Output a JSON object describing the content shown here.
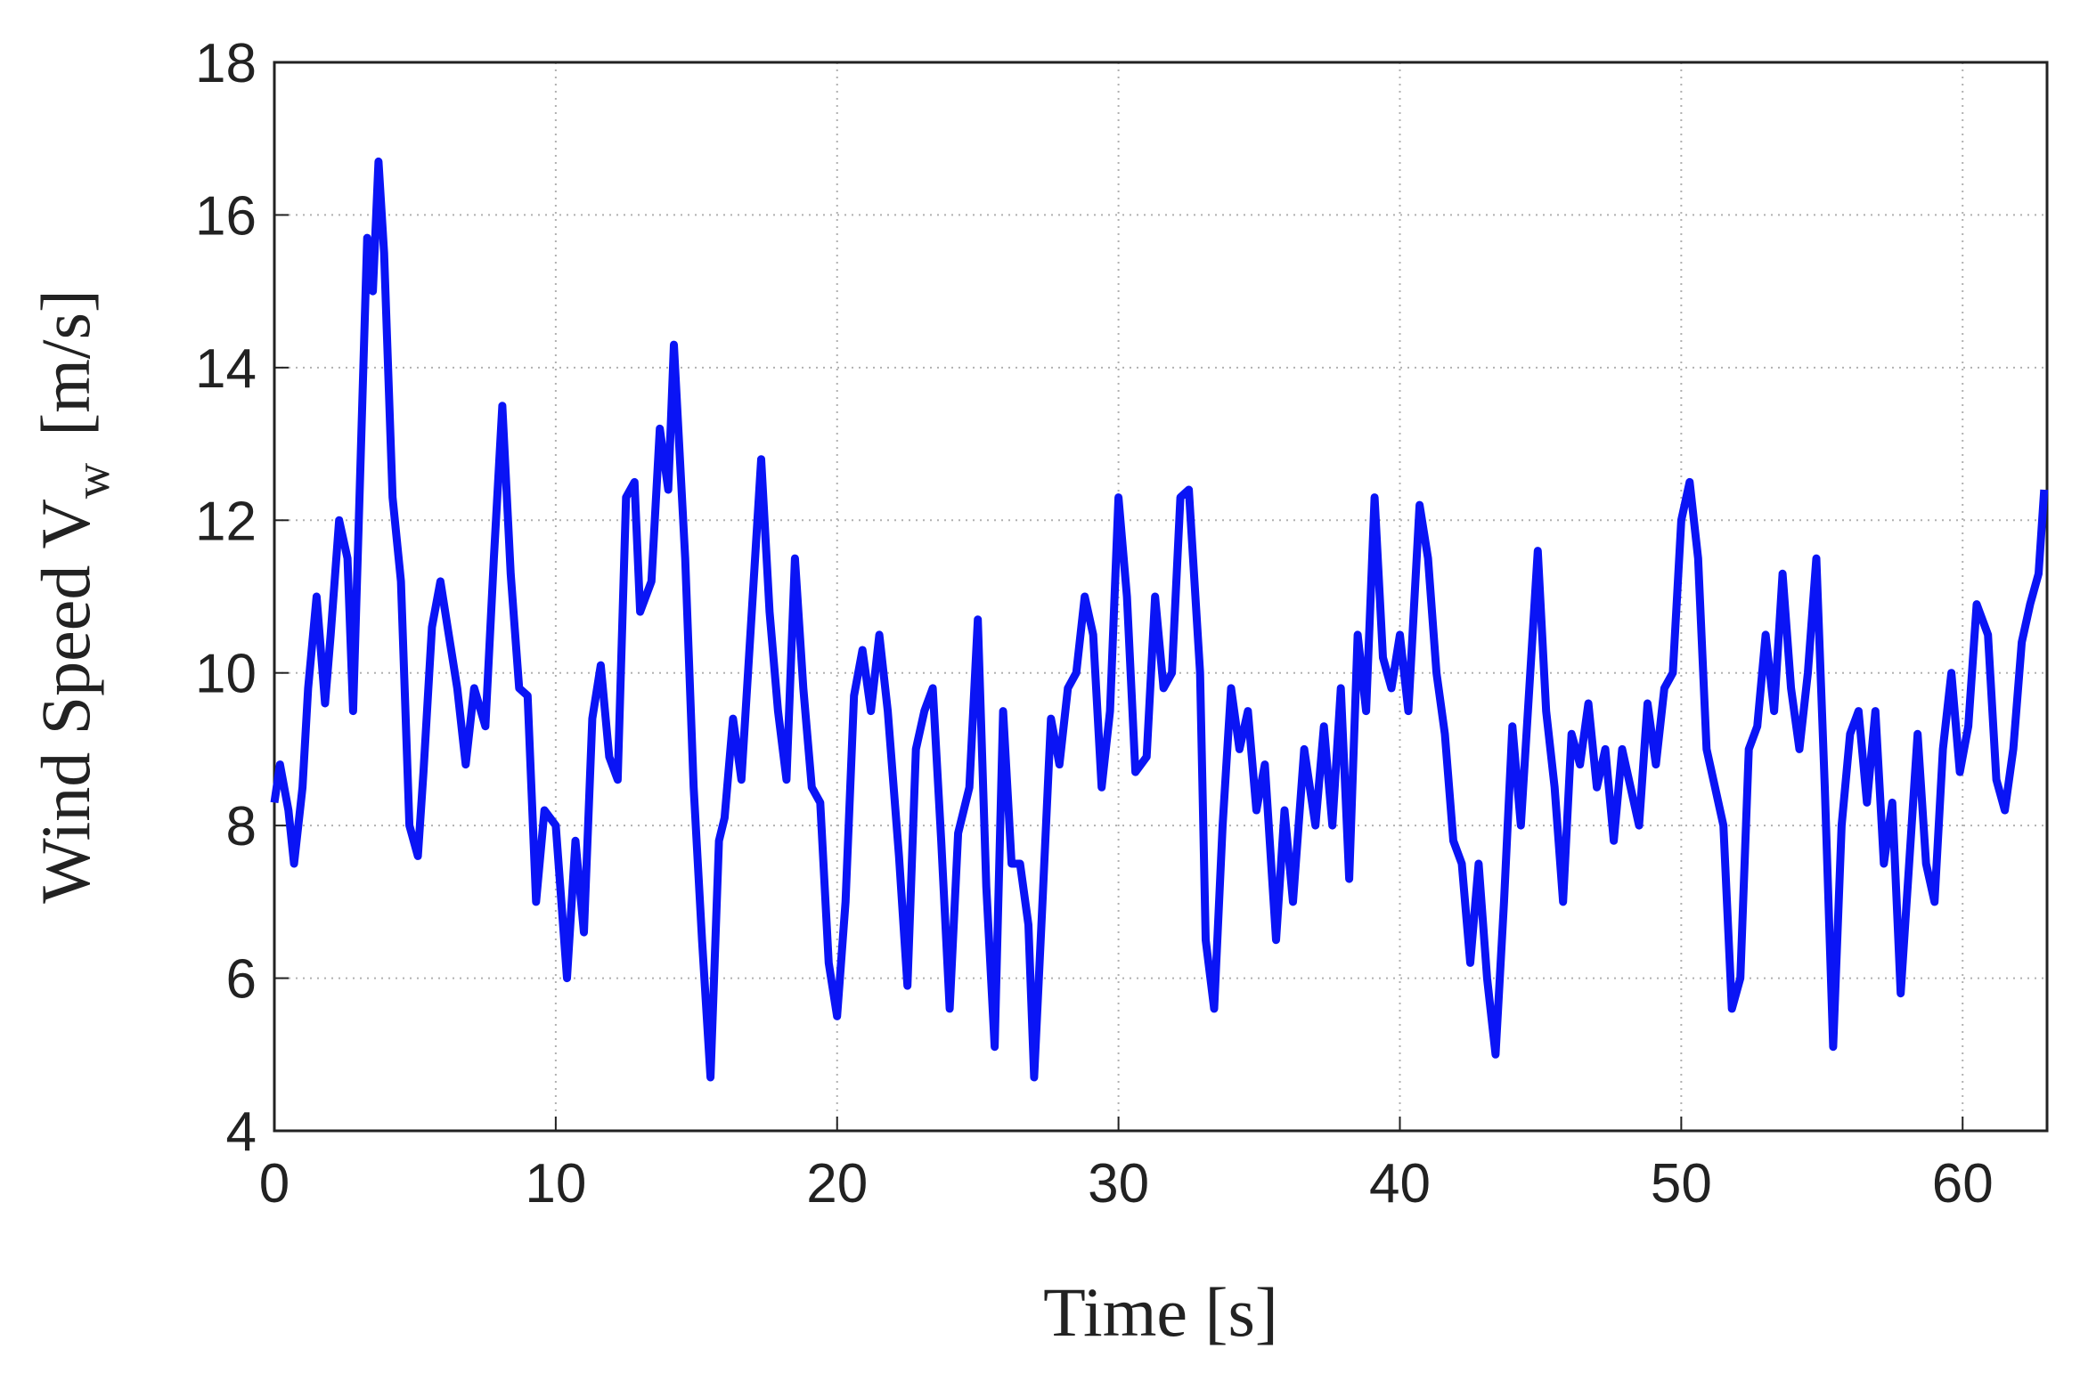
{
  "chart_data": {
    "type": "line",
    "xlabel": "Time  [s]",
    "ylabel": "Wind Speed  V",
    "ylabel_subscript": "w",
    "ylabel_unit": "[m/s]",
    "xlim": [
      0,
      63
    ],
    "xticks": [
      0,
      10,
      20,
      30,
      40,
      50,
      60
    ],
    "ylim": [
      4,
      18
    ],
    "yticks": [
      4,
      6,
      8,
      10,
      12,
      14,
      16,
      18
    ],
    "grid": true,
    "x": [
      0,
      0.2,
      0.5,
      0.7,
      1.0,
      1.2,
      1.5,
      1.8,
      2.0,
      2.3,
      2.6,
      2.8,
      3.0,
      3.3,
      3.5,
      3.7,
      3.9,
      4.2,
      4.5,
      4.8,
      5.1,
      5.3,
      5.6,
      5.9,
      6.2,
      6.5,
      6.8,
      7.1,
      7.5,
      7.8,
      8.1,
      8.4,
      8.7,
      9.0,
      9.3,
      9.6,
      10.0,
      10.4,
      10.7,
      11.0,
      11.3,
      11.6,
      11.9,
      12.2,
      12.5,
      12.8,
      13.0,
      13.4,
      13.7,
      14.0,
      14.2,
      14.6,
      14.9,
      15.2,
      15.5,
      15.8,
      16.0,
      16.3,
      16.6,
      17.0,
      17.3,
      17.6,
      17.9,
      18.2,
      18.5,
      18.8,
      19.1,
      19.4,
      19.7,
      20.0,
      20.3,
      20.6,
      20.9,
      21.2,
      21.5,
      21.8,
      22.2,
      22.5,
      22.8,
      23.1,
      23.4,
      23.7,
      24.0,
      24.3,
      24.7,
      25.0,
      25.3,
      25.6,
      25.9,
      26.2,
      26.5,
      26.8,
      27.0,
      27.3,
      27.6,
      27.9,
      28.2,
      28.5,
      28.8,
      29.1,
      29.4,
      29.7,
      30.0,
      30.3,
      30.6,
      31.0,
      31.3,
      31.6,
      31.9,
      32.2,
      32.5,
      32.9,
      33.1,
      33.4,
      33.7,
      34.0,
      34.3,
      34.6,
      34.9,
      35.2,
      35.6,
      35.9,
      36.2,
      36.6,
      37.0,
      37.3,
      37.6,
      37.9,
      38.2,
      38.5,
      38.8,
      39.1,
      39.4,
      39.7,
      40.0,
      40.3,
      40.7,
      41.0,
      41.3,
      41.6,
      41.9,
      42.2,
      42.5,
      42.8,
      43.1,
      43.4,
      43.7,
      44.0,
      44.3,
      44.6,
      44.9,
      45.2,
      45.5,
      45.8,
      46.1,
      46.4,
      46.7,
      47.0,
      47.3,
      47.6,
      47.9,
      48.2,
      48.5,
      48.8,
      49.1,
      49.4,
      49.7,
      50.0,
      50.3,
      50.6,
      50.9,
      51.2,
      51.5,
      51.8,
      52.1,
      52.4,
      52.7,
      53.0,
      53.3,
      53.6,
      53.9,
      54.2,
      54.5,
      54.8,
      55.1,
      55.4,
      55.7,
      56.0,
      56.3,
      56.6,
      56.9,
      57.2,
      57.5,
      57.8,
      58.1,
      58.4,
      58.7,
      59.0,
      59.3,
      59.6,
      59.9,
      60.2,
      60.5,
      60.9,
      61.2,
      61.5,
      61.8,
      62.1,
      62.4,
      62.7,
      62.9
    ],
    "series": [
      {
        "color": "#0a14f5",
        "values": [
          8.3,
          8.8,
          8.2,
          7.5,
          8.5,
          9.8,
          11.0,
          9.6,
          10.5,
          12.0,
          11.5,
          9.5,
          12.0,
          15.7,
          15.0,
          16.7,
          15.5,
          12.3,
          11.2,
          8.0,
          7.6,
          8.7,
          10.6,
          11.2,
          10.5,
          9.8,
          8.8,
          9.8,
          9.3,
          11.5,
          13.5,
          11.3,
          9.8,
          9.7,
          7.0,
          8.2,
          8.0,
          6.0,
          7.8,
          6.6,
          9.4,
          10.1,
          8.9,
          8.6,
          12.3,
          12.5,
          10.8,
          11.2,
          13.2,
          12.4,
          14.3,
          11.5,
          8.5,
          6.5,
          4.7,
          7.8,
          8.1,
          9.4,
          8.6,
          11.0,
          12.8,
          10.8,
          9.5,
          8.6,
          11.5,
          9.8,
          8.5,
          8.3,
          6.2,
          5.5,
          7.0,
          9.7,
          10.3,
          9.5,
          10.5,
          9.5,
          7.6,
          5.9,
          9.0,
          9.5,
          9.8,
          7.8,
          5.6,
          7.9,
          8.5,
          10.7,
          7.2,
          5.1,
          9.5,
          7.5,
          7.5,
          6.7,
          4.7,
          7.0,
          9.4,
          8.8,
          9.8,
          10.0,
          11.0,
          10.5,
          8.5,
          9.5,
          12.3,
          11.0,
          8.7,
          8.9,
          11.0,
          9.8,
          10.0,
          12.3,
          12.4,
          10.0,
          6.5,
          5.6,
          8.0,
          9.8,
          9.0,
          9.5,
          8.2,
          8.8,
          6.5,
          8.2,
          7.0,
          9.0,
          8.0,
          9.3,
          8.0,
          9.8,
          7.3,
          10.5,
          9.5,
          12.3,
          10.2,
          9.8,
          10.5,
          9.5,
          12.2,
          11.5,
          10.0,
          9.2,
          7.8,
          7.5,
          6.2,
          7.5,
          6.0,
          5.0,
          7.0,
          9.3,
          8.0,
          9.8,
          11.6,
          9.5,
          8.5,
          7.0,
          9.2,
          8.8,
          9.6,
          8.5,
          9.0,
          7.8,
          9.0,
          8.5,
          8.0,
          9.6,
          8.8,
          9.8,
          10.0,
          12.0,
          12.5,
          11.5,
          9.0,
          8.5,
          8.0,
          5.6,
          6.0,
          9.0,
          9.3,
          10.5,
          9.5,
          11.3,
          9.8,
          9.0,
          10.0,
          11.5,
          8.5,
          5.1,
          8.0,
          9.2,
          9.5,
          8.3,
          9.5,
          7.5,
          8.3,
          5.8,
          7.5,
          9.2,
          7.5,
          7.0,
          9.0,
          10.0,
          8.7,
          9.3,
          10.9,
          10.5,
          8.6,
          8.2,
          9.0,
          10.4,
          10.9,
          11.3,
          12.4
        ]
      }
    ]
  }
}
